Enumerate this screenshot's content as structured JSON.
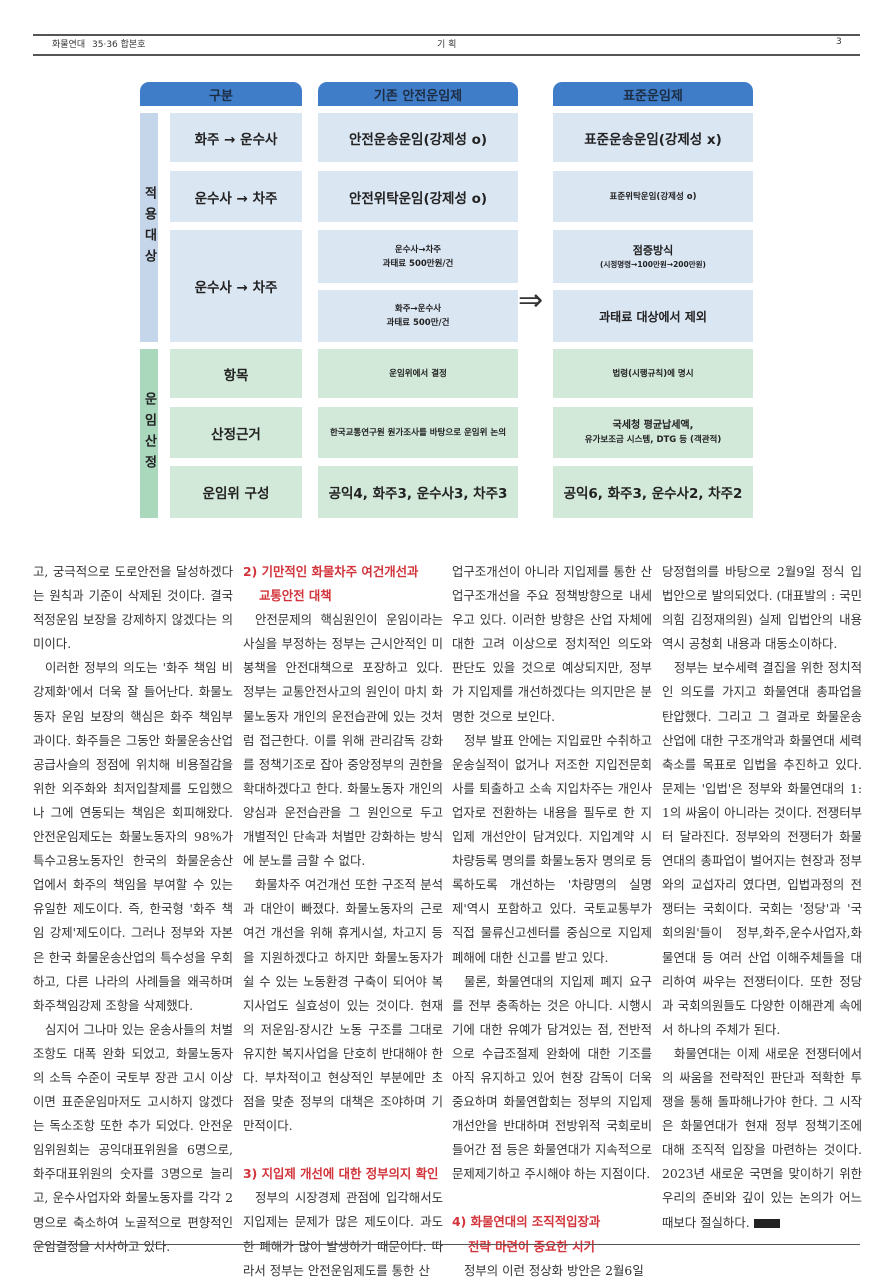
{
  "header": {
    "publication": "화물연대",
    "issue": "35·36 합본호",
    "section": "기 획",
    "page": "3"
  },
  "table": {
    "headers": [
      "구분",
      "기존 안전운임제",
      "표준운임제"
    ],
    "groups": [
      {
        "label": "적용대상"
      },
      {
        "label": "운임산정"
      }
    ],
    "rows": {
      "r1": {
        "category": "화주 → 운수사",
        "existing": "안전운송운임(강제성 ο)",
        "standard": "표준운송운임(강제성 x)"
      },
      "r2": {
        "category": "운수사 → 차주",
        "existing": "안전위탁운임(강제성 ο)",
        "standard": "표준위탁운임(강제성 ο)"
      },
      "r3": {
        "category": "운수사 → 차주",
        "existing_a_1": "운수사→차주",
        "existing_a_2": "과태료 500만원/건",
        "existing_b_1": "화주→운수사",
        "existing_b_2": "과태료 500만/건",
        "standard_a_1": "점증방식",
        "standard_a_2": "(시정명령→100만원→200만원)",
        "standard_b": "과태료 대상에서 제외"
      },
      "r4": {
        "category": "항목",
        "existing": "운임위에서 결정",
        "standard": "법령(시행규칙)에 명시"
      },
      "r5": {
        "category": "산정근거",
        "existing": "한국교통연구원 원가조사를 바탕으로 운임위 논의",
        "standard_1": "국세청 평균납세액,",
        "standard_2": "유가보조금 시스템, DTG 등 (객관적)"
      },
      "r6": {
        "category": "운임위 구성",
        "existing": "공익4, 화주3, 운수사3, 차주3",
        "standard": "공익6, 화주3, 운수사2, 차주2"
      }
    },
    "arrow": "⇒"
  },
  "article": {
    "col1": [
      "고, 궁극적으로 도로안전을 달성하겠다는 원칙과 기준이 삭제된 것이다. 결국 적정운임 보장을 강제하지 않겠다는 의미이다.",
      "이러한 정부의 의도는 '화주 책임 비강제화'에서 더욱 잘 들어난다. 화물노동자 운임 보장의 핵심은 화주 책임부과이다. 화주들은 그동안 화물운송산업 공급사슬의 정점에 위치해 비용절감을 위한 외주화와 최저입찰제를 도입했으나 그에 연동되는 책임은 회피해왔다. 안전운임제도는 화물노동자의 98%가 특수고용노동자인 한국의 화물운송산업에서 화주의 책임을 부여할 수 있는 유일한 제도이다. 즉, 한국형 '화주 책임 강제'제도이다. 그러나 정부와 자본은 한국 화물운송산업의 특수성을 우회하고, 다른 나라의 사례들을 왜곡하며 화주책임강제 조항을 삭제했다.",
      "심지어 그나마 있는 운송사들의 처벌조항도 대폭 완화 되었고, 화물노동자의 소득 수준이 국토부 장관 고시 이상이면 표준운임마저도 고시하지 않겠다는 독소조항 또한 추가 되었다. 안전운임위원회는 공익대표위원을 6명으로, 화주대표위원의 숫자를 3명으로 늘리고, 운수사업자와 화물노동자를 각각 2명으로 축소하여 노골적으로 편향적인 운임결정을 시사하고 있다."
    ],
    "h2_1": "2) 기만적인 화물차주 여건개선과",
    "h2_2": "교통안전 대책",
    "col2": [
      "안전문제의 핵심원인이 운임이라는 사실을 부정하는 정부는 근시안적인 미봉책을 안전대책으로 포장하고 있다. 정부는 교통안전사고의 원인이 마치 화물노동자 개인의 운전습관에 있는 것처럼 접근한다. 이를 위해 관리감독 강화를 정책기조로 잡아 중앙정부의 권한을 확대하겠다고 한다. 화물노동자 개인의 양심과 운전습관을 그 원인으로 두고 개별적인 단속과 처벌만 강화하는 방식에 분노를 금할 수 없다.",
      "화물차주 여건개선 또한 구조적 분석과 대안이 빠졌다. 화물노동자의 근로여건 개선을 위해 휴게시설, 차고지 등을 지원하겠다고 하지만 화물노동자가 쉴 수 있는 노동환경 구축이 되어야 복지사업도 실효성이 있는 것이다. 현재의 저운임-장시간 노동 구조를 그대로 유지한 복지사업을 단호히 반대해야 한다. 부차적이고 현상적인 부분에만 초점을 맞춘 정부의 대책은 조야하며 기만적이다."
    ],
    "h3": "3) 지입제 개선에 대한 정부의지 확인",
    "col2b": [
      "정부의 시장경제 관점에 입각해서도 지입제는 문제가 많은 제도이다. 과도한 폐해가 많이 발생하기 때문이다. 따라서 정부는 안전운임제도를 통한 산"
    ],
    "col3": [
      "업구조개선이 아니라 지입제를 통한 산업구조개선을 주요 정책방향으로 내세우고 있다. 이러한 방향은 산업 자체에 대한 고려 이상으로 정치적인 의도와 판단도 있을 것으로 예상되지만, 정부가 지입제를 개선하겠다는 의지만은 분명한 것으로 보인다.",
      "정부 발표 안에는 지입료만 수취하고 운송실적이 없거나 저조한 지입전문회사를 퇴출하고 소속 지입차주는 개인사업자로 전환하는 내용을 필두로 한 지입제 개선안이 담겨있다. 지입계약 시 차량등록 명의를 화물노동자 명의로 등록하도록 개선하는 '차량명의 실명제'역시 포함하고 있다. 국토교통부가 직접 물류신고센터를 중심으로 지입제폐해에 대한 신고를 받고 있다.",
      "물론, 화물연대의 지입제 폐지 요구를 전부 충족하는 것은 아니다. 시행시기에 대한 유예가 담겨있는 점, 전반적으로 수급조절제 완화에 대한 기조를 아직 유지하고 있어 현장 감독이 더욱 중요하며 화물연합회는 정부의 지입제 개선안을 반대하며 전방위적 국회로비 들어간 점 등은 화물연대가 지속적으로 문제제기하고 주시해야 하는 지점이다."
    ],
    "h4_1": "4) 화물연대의 조직적입장과",
    "h4_2": "전략 마련이 중요한 시기",
    "col3b": [
      "정부의 이런 정상화 방안은 2월6일"
    ],
    "col4": [
      "당정협의를 바탕으로 2월9일 정식 입법안으로 발의되었다. (대표발의 : 국민의힘 김정재의원) 실제 입법안의 내용 역시 공청회 내용과 대동소이하다.",
      "정부는 보수세력 결집을 위한 정치적인 의도를 가지고 화물연대 총파업을 탄압했다. 그리고 그 결과로 화물운송산업에 대한 구조개악과 화물연대 세력 축소를 목표로 입법을 추진하고 있다. 문제는 '입법'은 정부와 화물연대의 1:1의 싸움이 아니라는 것이다. 전쟁터부터 달라진다. 정부와의 전쟁터가 화물연대의 총파업이 벌어지는 현장과 정부와의 교섭자리 였다면, 입법과정의 전쟁터는 국회이다. 국회는 '정당'과 '국회의원'들이 정부,화주,운수사업자,화물연대 등 여러 산업 이해주체들을 대리하여 싸우는 전쟁터이다. 또한 정당과 국회의원들도 다양한 이해관계 속에서 하나의 주체가 된다.",
      "화물연대는 이제 새로운 전쟁터에서의 싸움을 전략적인 판단과 적확한 투쟁을 통해 돌파해나가야 한다. 그 시작은 화물연대가 현재 정부 정책기조에 대해 조직적 입장을 마련하는 것이다. 2023년 새로운 국면을 맞이하기 위한 우리의 준비와 깊이 있는 논의가 어느 때보다 절실하다."
    ]
  },
  "colors": {
    "header_blue": "#3f7dc8",
    "cell_blue": "#dbe6f3",
    "cell_green": "#d2e9da",
    "heading_red": "#d2343b"
  }
}
